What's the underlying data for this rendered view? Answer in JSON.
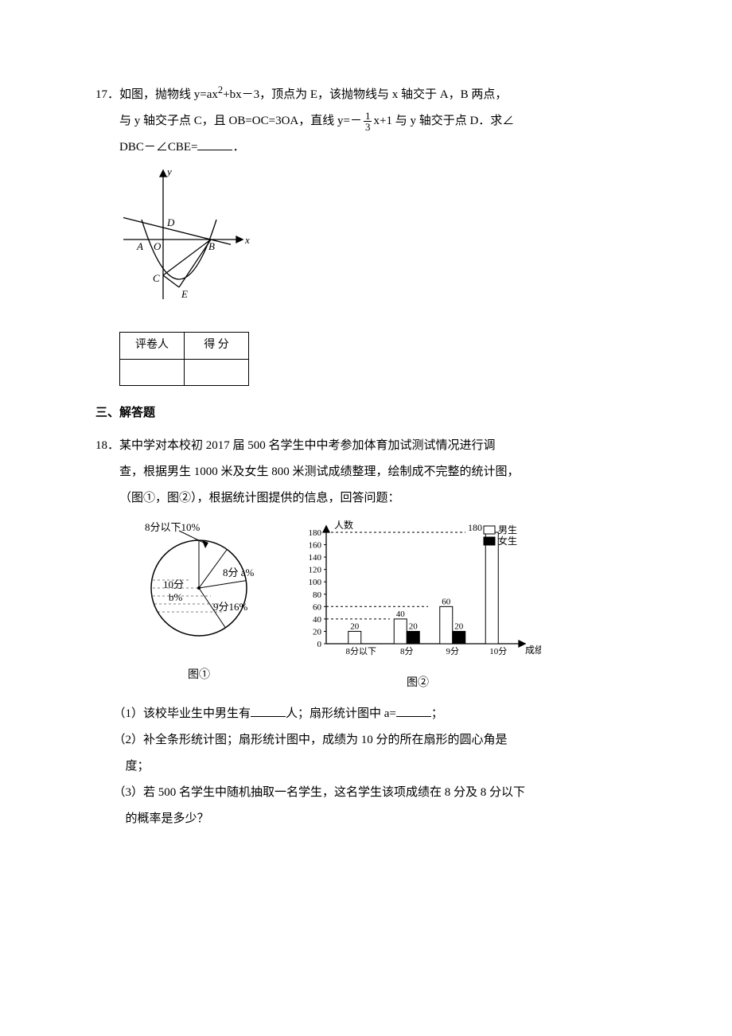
{
  "q17": {
    "number": "17．",
    "text_a": "如图，抛物线 y=ax",
    "sup": "2",
    "text_b": "+bx－3，顶点为 E，该抛物线与 x 轴交于 A，B 两点，",
    "text_c": "与 y 轴交子点 C，且 OB=OC=3OA，直线 y=－",
    "frac_num": "1",
    "frac_den": "3",
    "text_d": "x+1 与 y 轴交于点 D．求∠",
    "text_e": "DBC－∠CBE=",
    "text_f": "．",
    "fig": {
      "y": "y",
      "x": "x",
      "A": "A",
      "O": "O",
      "B": "B",
      "C": "C",
      "D": "D",
      "E": "E",
      "stroke": "#000000"
    }
  },
  "score_table": {
    "grader": "评卷人",
    "score": "得  分"
  },
  "section3": "三、解答题",
  "q18": {
    "number": "18．",
    "line1": "某中学对本校初 2017 届 500 名学生中中考参加体育加试测试情况进行调",
    "line2": "查，根据男生 1000 米及女生 800 米测试成绩整理，绘制成不完整的统计图，",
    "line3": "（图①，图②），根据统计图提供的信息，回答问题：",
    "pie": {
      "caption": "图①",
      "labels": {
        "below8": "8分以下10%",
        "ten": "10分",
        "b": "b%",
        "eight": "8分 a%",
        "nine": "9分16%"
      },
      "colors": {
        "fill": "#ffffff",
        "line": "#000000"
      }
    },
    "bar": {
      "caption": "图②",
      "y_title": "人数",
      "x_title": "成绩",
      "legend_m": "男生",
      "legend_f": "女生",
      "y_ticks": [
        "0",
        "20",
        "40",
        "60",
        "80",
        "100",
        "120",
        "140",
        "160",
        "180"
      ],
      "y_max": 180,
      "categories": [
        "8分以下",
        "8分",
        "9分",
        "10分"
      ],
      "male": [
        20,
        40,
        60,
        180
      ],
      "female": [
        null,
        20,
        20,
        null
      ],
      "value_labels": {
        "0": "20",
        "1m": "40",
        "1f": "20",
        "2m": "60",
        "2f": "20",
        "3": "180"
      },
      "colors": {
        "male": "#ffffff",
        "female": "#000000",
        "axis": "#000000",
        "dash": "#000000"
      }
    },
    "s1a": "（1）该校毕业生中男生有",
    "s1b": "人；扇形统计图中 a=",
    "s1c": "；",
    "s2": "（2）补全条形统计图；扇形统计图中，成绩为 10 分的所在扇形的圆心角是",
    "s2b": "度；",
    "s3": "（3）若 500 名学生中随机抽取一名学生，这名学生该项成绩在 8 分及 8 分以下",
    "s3b": "的概率是多少？"
  }
}
